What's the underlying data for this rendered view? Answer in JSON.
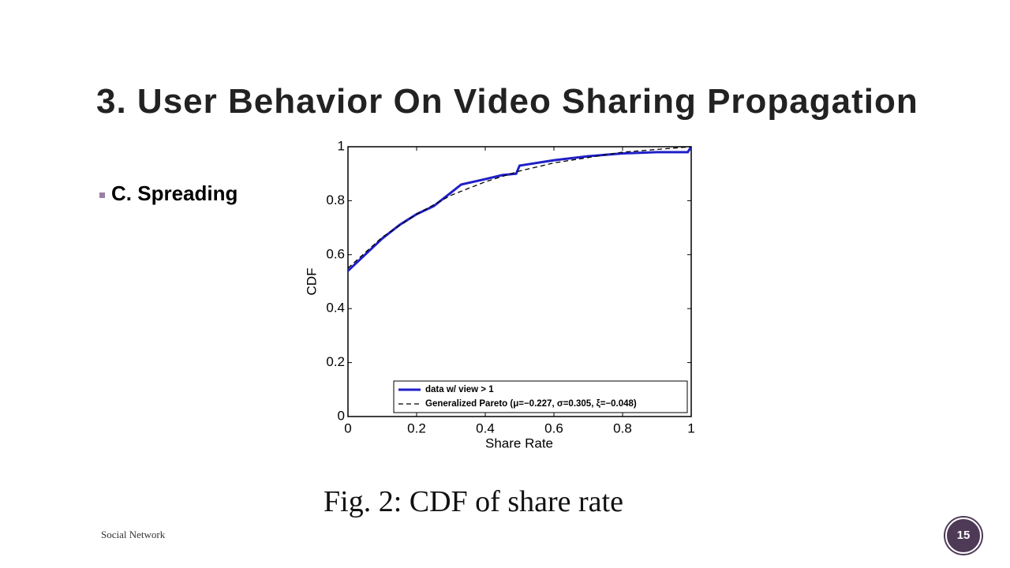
{
  "title": "3. User Behavior On Video Sharing Propagation",
  "bullet": "C. Spreading",
  "figure_caption": "Fig. 2: CDF of share rate",
  "footer": "Social Network",
  "page_number": "15",
  "chart_data": {
    "type": "line",
    "x_label": "Share Rate",
    "y_label": "CDF",
    "xlim": [
      0,
      1
    ],
    "ylim": [
      0,
      1
    ],
    "xticks": [
      0,
      0.2,
      0.4,
      0.6,
      0.8,
      1
    ],
    "yticks": [
      0,
      0.2,
      0.4,
      0.6,
      0.8,
      1
    ],
    "grid": false,
    "legend": "lower right",
    "series": [
      {
        "name": "data w/ view > 1",
        "color": "#1f1fc8",
        "style": "solid",
        "x": [
          0,
          0.05,
          0.1,
          0.15,
          0.2,
          0.25,
          0.3,
          0.33,
          0.4,
          0.45,
          0.49,
          0.5,
          0.6,
          0.7,
          0.8,
          0.9,
          0.99,
          1
        ],
        "values": [
          0.54,
          0.6,
          0.66,
          0.71,
          0.75,
          0.78,
          0.83,
          0.86,
          0.88,
          0.895,
          0.9,
          0.93,
          0.95,
          0.965,
          0.975,
          0.98,
          0.98,
          1
        ]
      },
      {
        "name": "Generalized Pareto (μ=−0.227, σ=0.305, ξ=−0.048)",
        "color": "#000000",
        "style": "dashed",
        "x": [
          0,
          0.1,
          0.2,
          0.3,
          0.4,
          0.5,
          0.6,
          0.7,
          0.8,
          0.9,
          1
        ],
        "values": [
          0.55,
          0.665,
          0.75,
          0.82,
          0.87,
          0.91,
          0.94,
          0.96,
          0.98,
          0.99,
          1
        ]
      }
    ]
  }
}
